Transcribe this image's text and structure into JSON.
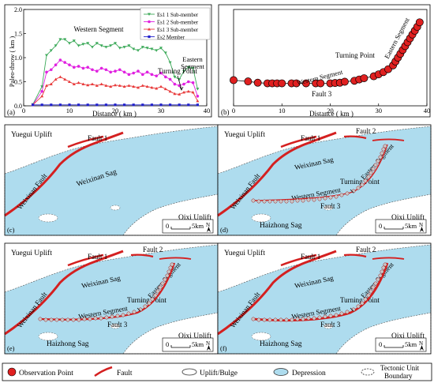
{
  "panel_a": {
    "tag": "(a)",
    "ylabel": "Paleo-throw ( km )",
    "xlabel": "Distance ( km )",
    "annotations": {
      "western": "Western Segment",
      "turning": "Turning Point",
      "eastern1": "Eastern",
      "eastern2": "Segment"
    },
    "legend": [
      {
        "name": "Es1 1 Sub-member",
        "color": "#3daa5a",
        "marker": "down-triangle"
      },
      {
        "name": "Es1 2 Sub-member",
        "color": "#e020e0",
        "marker": "circle"
      },
      {
        "name": "Es1 3 Sub-member",
        "color": "#e83a3a",
        "marker": "up-triangle"
      },
      {
        "name": "Es2 Member",
        "color": "#2222cc",
        "marker": "square"
      }
    ]
  },
  "panel_b": {
    "tag": "(b)",
    "xlabel": "Distance ( km )",
    "annotations": {
      "turning": "Turning Point",
      "western": "Western Segment",
      "eastern": "Eastern Segment",
      "fault": "Fault 3"
    }
  },
  "chart_data": [
    {
      "type": "line",
      "xlabel": "Distance ( km )",
      "ylabel": "Paleo-throw ( km )",
      "xlim": [
        0,
        40
      ],
      "ylim": [
        0,
        2.0
      ],
      "xticks": [
        0,
        10,
        20,
        30,
        40
      ],
      "yticks": [
        0.0,
        0.5,
        1.0,
        1.5,
        2.0
      ],
      "series": [
        {
          "name": "Es1 1 Sub-member",
          "color": "#3daa5a",
          "x": [
            2,
            4,
            5,
            6,
            7,
            8,
            9,
            10,
            11,
            12,
            13,
            14,
            15,
            16,
            17,
            18,
            19,
            20,
            21,
            22,
            23,
            24,
            25,
            26,
            27,
            28,
            29,
            30,
            31,
            32,
            33,
            34,
            35,
            36,
            37,
            38
          ],
          "y": [
            0.03,
            0.4,
            1.05,
            1.15,
            1.25,
            1.38,
            1.38,
            1.3,
            1.35,
            1.25,
            1.28,
            1.3,
            1.22,
            1.3,
            1.25,
            1.22,
            1.25,
            1.3,
            1.2,
            1.22,
            1.25,
            1.18,
            1.15,
            1.22,
            1.2,
            1.18,
            1.15,
            1.2,
            1.1,
            0.9,
            0.6,
            0.55,
            0.72,
            0.8,
            0.78,
            0.35
          ]
        },
        {
          "name": "Es1 2 Sub-member",
          "color": "#e020e0",
          "x": [
            2,
            4,
            5,
            6,
            7,
            8,
            9,
            10,
            11,
            12,
            13,
            14,
            15,
            16,
            17,
            18,
            19,
            20,
            21,
            22,
            23,
            24,
            25,
            26,
            27,
            28,
            29,
            30,
            31,
            32,
            33,
            34,
            35,
            36,
            37,
            38
          ],
          "y": [
            0.02,
            0.3,
            0.7,
            0.75,
            0.85,
            0.95,
            0.9,
            0.85,
            0.8,
            0.82,
            0.78,
            0.8,
            0.75,
            0.72,
            0.78,
            0.75,
            0.7,
            0.72,
            0.75,
            0.7,
            0.65,
            0.68,
            0.72,
            0.65,
            0.7,
            0.65,
            0.62,
            0.68,
            0.6,
            0.55,
            0.45,
            0.42,
            0.45,
            0.5,
            0.48,
            0.2
          ]
        },
        {
          "name": "Es1 3 Sub-member",
          "color": "#e83a3a",
          "x": [
            2,
            4,
            5,
            6,
            7,
            8,
            9,
            10,
            11,
            12,
            13,
            14,
            15,
            16,
            17,
            18,
            19,
            20,
            21,
            22,
            23,
            24,
            25,
            26,
            27,
            28,
            29,
            30,
            31,
            32,
            33,
            34,
            35,
            36,
            37,
            38
          ],
          "y": [
            0.02,
            0.2,
            0.42,
            0.45,
            0.55,
            0.6,
            0.55,
            0.5,
            0.45,
            0.48,
            0.45,
            0.43,
            0.45,
            0.42,
            0.45,
            0.42,
            0.4,
            0.43,
            0.42,
            0.4,
            0.42,
            0.4,
            0.38,
            0.42,
            0.4,
            0.38,
            0.36,
            0.4,
            0.35,
            0.3,
            0.25,
            0.24,
            0.28,
            0.3,
            0.28,
            0.1
          ]
        },
        {
          "name": "Es2 Member",
          "color": "#2222cc",
          "x": [
            2,
            4,
            6,
            8,
            10,
            12,
            14,
            16,
            18,
            20,
            22,
            24,
            26,
            28,
            30,
            32,
            34,
            36,
            38
          ],
          "y": [
            0.02,
            0.02,
            0.02,
            0.02,
            0.02,
            0.02,
            0.02,
            0.02,
            0.02,
            0.02,
            0.02,
            0.02,
            0.02,
            0.02,
            0.02,
            0.02,
            0.02,
            0.02,
            0.02
          ]
        }
      ]
    },
    {
      "type": "scatter",
      "xlabel": "Distance ( km )",
      "xlim": [
        0,
        40
      ],
      "xticks": [
        0,
        10,
        20,
        30,
        40
      ],
      "series": [
        {
          "name": "",
          "color": "#e02020",
          "x": [
            0,
            3,
            5,
            7,
            8,
            9,
            10,
            12,
            13,
            15,
            17,
            18,
            20,
            21,
            22,
            23,
            25,
            26,
            27,
            29,
            30,
            31,
            32,
            33,
            33.5,
            34,
            34.5,
            35,
            35.5,
            36,
            36.5,
            37,
            37.5,
            38,
            38.5
          ],
          "y": [
            8,
            7.6,
            7.2,
            7,
            7,
            7,
            7,
            7,
            7,
            7,
            7,
            7,
            7,
            7.1,
            7.2,
            7.5,
            7.8,
            8.2,
            8.6,
            9.2,
            9.8,
            10.5,
            11.4,
            12.6,
            13.8,
            15,
            16.2,
            17.4,
            18.6,
            19.8,
            21,
            22.2,
            23.4,
            24.6,
            26
          ]
        }
      ]
    }
  ],
  "maps": [
    {
      "tag": "(c)",
      "labels": {
        "yuegui": "Yuegui Uplift",
        "fault1": "Fault 1",
        "weixinan_fault": "Weixinan Fault",
        "weixinan_sag": "Weixinan  Sag",
        "qixi": "Qixi Uplift"
      },
      "scale": "5km",
      "north": "N"
    },
    {
      "tag": "(d)",
      "labels": {
        "yuegui": "Yuegui Uplift",
        "fault1": "Fault 1",
        "fault2": "Fault 2",
        "weixinan_fault": "Weixinan Fault",
        "weixinan_sag": "Weixinan Sag",
        "eastern": "Eastern Segment",
        "turning": "Turning Point",
        "western": "Western Segment",
        "fault3": "Fault 3",
        "haizhong": "Haizhong Sag",
        "qixi": "Qixi Uplift"
      },
      "scale": "5km",
      "north": "N"
    },
    {
      "tag": "(e)",
      "labels": {
        "yuegui": "Yuegui Uplift",
        "fault1": "Fault 1",
        "fault2": "Fault 2",
        "weixinan_fault": "Weixinan Fault",
        "weixinan_sag": "Weixinan Sag",
        "eastern": "Eastern Segment",
        "turning": "Turning Point",
        "western": "Western Segment",
        "fault3": "Fault 3",
        "haizhong": "Haizhong Sag",
        "qixi": "Qixi Uplift"
      },
      "scale": "5km",
      "north": "N"
    },
    {
      "tag": "(f)",
      "labels": {
        "yuegui": "Yuegui Uplift",
        "fault1": "Fault 1",
        "fault2": "Fault 2",
        "weixinan_fault": "Weixinan Fault",
        "weixinan_sag": "Weixinan Sag",
        "eastern": "Eastern Segment",
        "turning": "Turning Point",
        "western": "Western Segment",
        "fault3": "Fault 3",
        "haizhong": "Haizhong Sag",
        "qixi": "Qixi Uplift"
      },
      "scale": "5km",
      "north": "N"
    }
  ],
  "legend_bottom": [
    {
      "label": "Observation Point",
      "icon": "red-circle-icon"
    },
    {
      "label": "Fault",
      "icon": "fault-line-icon"
    },
    {
      "label": "Uplift/Bulge",
      "icon": "uplift-icon"
    },
    {
      "label": "Depression",
      "icon": "depression-icon"
    },
    {
      "label": "Tectonic Unit",
      "label2": "Boundary",
      "icon": "boundary-icon"
    }
  ],
  "colors": {
    "sea": "#aedcee",
    "fault": "#d42020",
    "land": "#ffffff"
  }
}
